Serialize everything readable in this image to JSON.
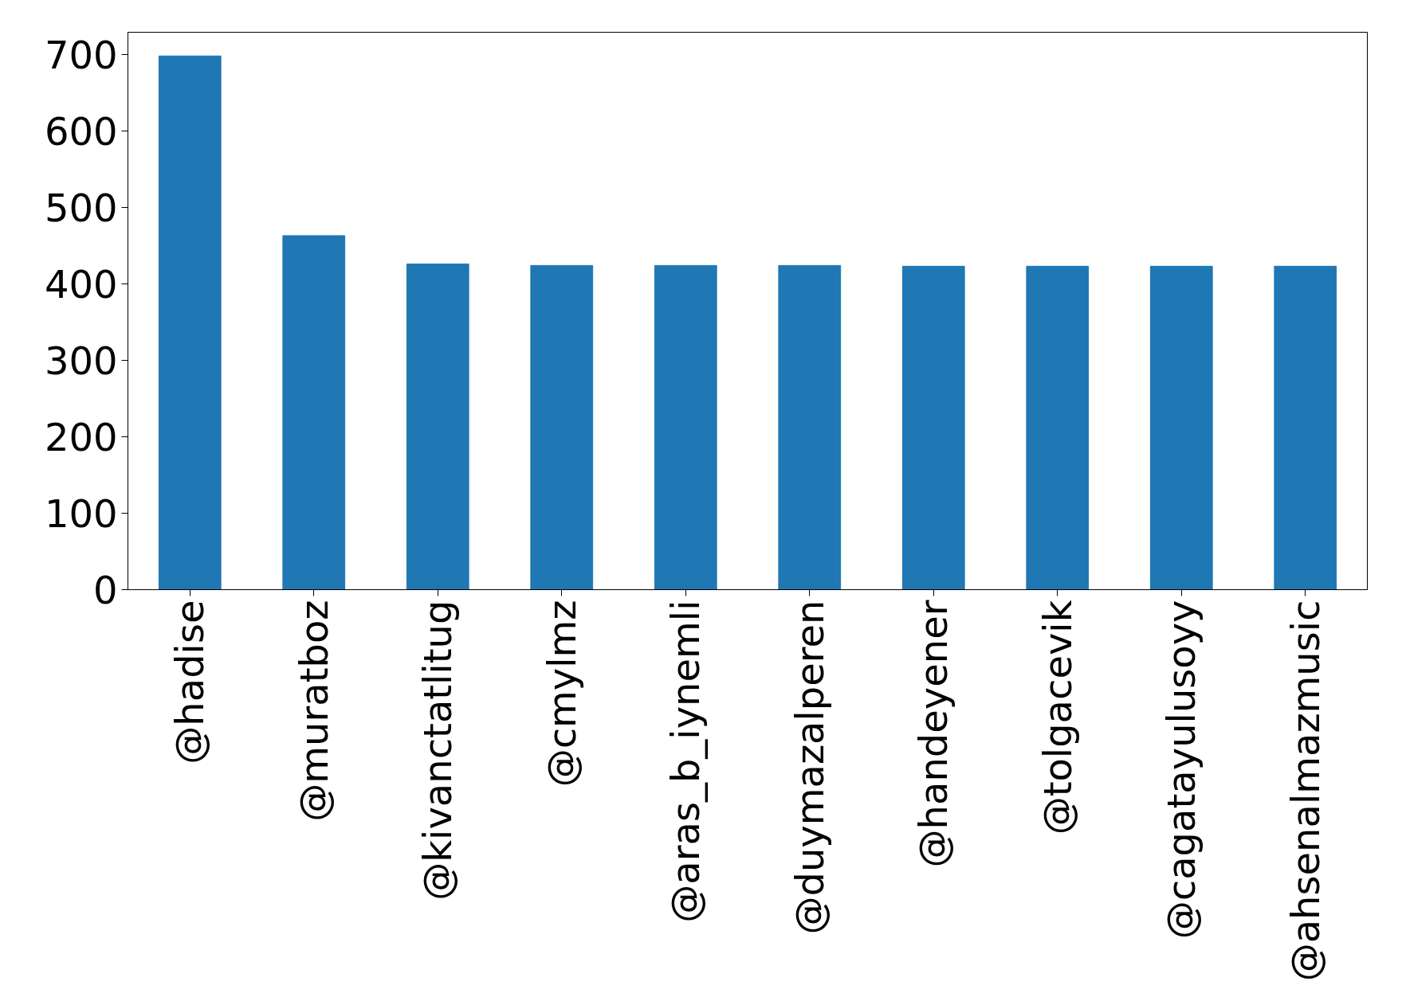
{
  "chart_data": {
    "type": "bar",
    "categories": [
      "@hadise",
      "@muratboz",
      "@kivanctatlitug",
      "@cmylmz",
      "@aras_b_iynemli",
      "@duymazalperen",
      "@handeyener",
      "@tolgacevik",
      "@cagatayulusoyy",
      "@ahsenalmazmusic"
    ],
    "values": [
      698,
      463,
      426,
      424,
      424,
      424,
      423,
      423,
      423,
      423
    ],
    "color": "#1f77b4",
    "ylim": [
      0,
      729
    ],
    "yticks": [
      0,
      100,
      200,
      300,
      400,
      500,
      600,
      700
    ],
    "grid": false
  }
}
